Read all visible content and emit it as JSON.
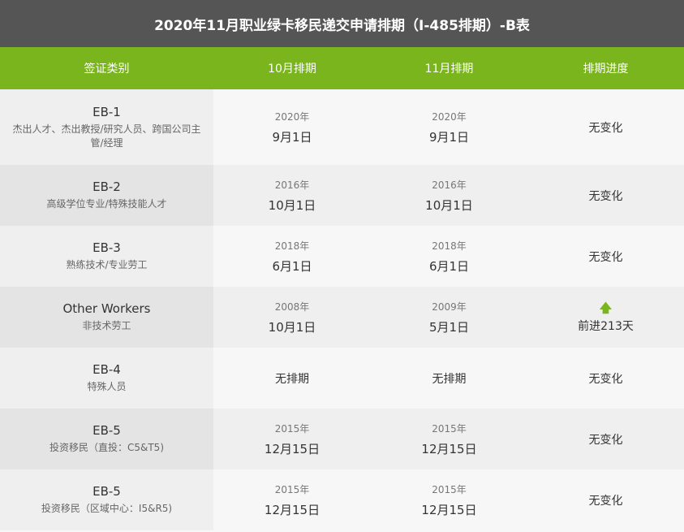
{
  "title": "2020年11月职业绿卡移民递交申请排期（I-485排期）-B表",
  "headers": [
    "签证类别",
    "10月排期",
    "11月排期",
    "排期进度"
  ],
  "accent": "#7ab51d",
  "rows": [
    {
      "cat": "EB-1",
      "desc": "杰出人才、杰出教授/研究人员、跨国公司主管/经理",
      "oct_year": "2020年",
      "oct_date": "9月1日",
      "nov_year": "2020年",
      "nov_date": "9月1日",
      "status": "无变化"
    },
    {
      "cat": "EB-2",
      "desc": "高级学位专业/特殊技能人才",
      "oct_year": "2016年",
      "oct_date": "10月1日",
      "nov_year": "2016年",
      "nov_date": "10月1日",
      "status": "无变化"
    },
    {
      "cat": "EB-3",
      "desc": "熟练技术/专业劳工",
      "oct_year": "2018年",
      "oct_date": "6月1日",
      "nov_year": "2018年",
      "nov_date": "6月1日",
      "status": "无变化"
    },
    {
      "cat": "Other Workers",
      "desc": "非技术劳工",
      "oct_year": "2008年",
      "oct_date": "10月1日",
      "nov_year": "2009年",
      "nov_date": "5月1日",
      "status": "前进213天",
      "icon": "arrow-up-icon"
    },
    {
      "cat": "EB-4",
      "desc": "特殊人员",
      "oct_year": "",
      "oct_date": "无排期",
      "nov_year": "",
      "nov_date": "无排期",
      "status": "无变化"
    },
    {
      "cat": "EB-5",
      "desc": "投资移民（直投：C5&T5)",
      "oct_year": "2015年",
      "oct_date": "12月15日",
      "nov_year": "2015年",
      "nov_date": "12月15日",
      "status": "无变化"
    },
    {
      "cat": "EB-5",
      "desc": "投资移民（区域中心：I5&R5)",
      "oct_year": "2015年",
      "oct_date": "12月15日",
      "nov_year": "2015年",
      "nov_date": "12月15日",
      "status": "无变化"
    }
  ]
}
